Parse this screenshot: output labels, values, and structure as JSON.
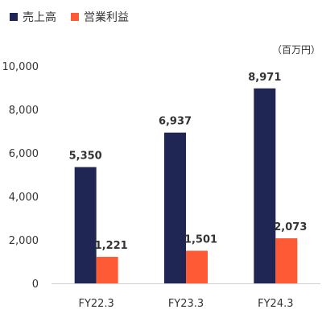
{
  "chart_data": {
    "type": "bar",
    "categories": [
      "FY22.3",
      "FY23.3",
      "FY24.3"
    ],
    "series": [
      {
        "name": "売上高",
        "values": [
          5350,
          6937,
          8971
        ],
        "labels": [
          "5,350",
          "6,937",
          "8,971"
        ],
        "color": "#1f2654"
      },
      {
        "name": "営業利益",
        "values": [
          1221,
          1501,
          2073
        ],
        "labels": [
          "1,221",
          "1,501",
          "2,073"
        ],
        "color": "#ff5a36"
      }
    ],
    "unit": "（百万円）",
    "ylim": [
      0,
      10000
    ],
    "yticks": [
      0,
      2000,
      4000,
      6000,
      8000,
      10000
    ],
    "ytick_labels": [
      "0",
      "2,000",
      "4,000",
      "6,000",
      "8,000",
      "10,000"
    ],
    "grid": false,
    "legend": "top-left"
  }
}
